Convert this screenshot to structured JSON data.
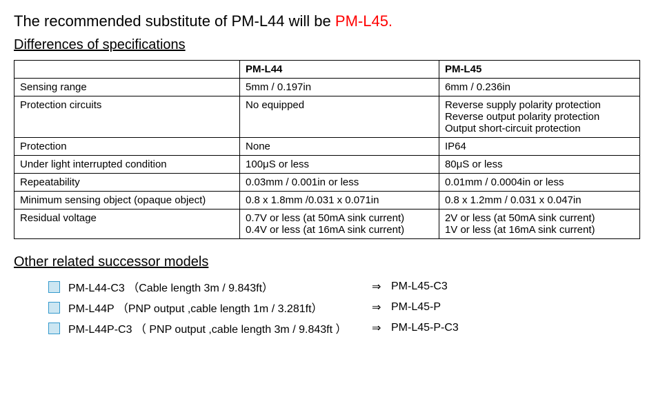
{
  "title": {
    "prefix": "The recommended substitute of PM-L44 will be  ",
    "highlight": "PM-L45.",
    "highlight_color": "#ff0000"
  },
  "spec_section": {
    "heading": "Differences of specifications",
    "header": {
      "blank": "",
      "col_a": "PM-L44",
      "col_b": "PM-L45"
    },
    "rows": [
      {
        "label": "Sensing range",
        "a": "5mm / 0.197in",
        "b": "6mm / 0.236in"
      },
      {
        "label": "Protection circuits",
        "a": "No equipped",
        "b": "Reverse supply polarity protection\nReverse output polarity protection\nOutput short-circuit protection"
      },
      {
        "label": "Protection",
        "a": "None",
        "b": "IP64"
      },
      {
        "label": "Under light interrupted condition",
        "a": "100μS or less",
        "b": "80μS or less"
      },
      {
        "label": "Repeatability",
        "a": "0.03mm / 0.001in or less",
        "b": "0.01mm / 0.0004in or less"
      },
      {
        "label": "Minimum sensing object (opaque object)",
        "a": "0.8 x 1.8mm /0.031 x 0.071in",
        "b": "0.8 x 1.2mm / 0.031 x 0.047in"
      },
      {
        "label": "Residual voltage",
        "a": "0.7V or less (at 50mA sink current)\n0.4V or less (at 16mA sink current)",
        "b": "2V or less (at 50mA sink current)\n1V or less (at 16mA sink current)"
      }
    ]
  },
  "successor_section": {
    "heading": "Other related successor models",
    "arrow": "⇒",
    "bullet": {
      "fill": "#cce6f2",
      "border": "#3399cc"
    },
    "items": [
      {
        "left": "PM-L44-C3 （Cable length 3m / 9.843ft）",
        "right": "PM-L45-C3"
      },
      {
        "left": "PM-L44P （PNP output ,cable length 1m / 3.281ft）",
        "right": "PM-L45-P"
      },
      {
        "left": "PM-L44P-C3 （ PNP output ,cable length 3m / 9.843ft ）",
        "right": "PM-L45-P-C3"
      }
    ]
  }
}
